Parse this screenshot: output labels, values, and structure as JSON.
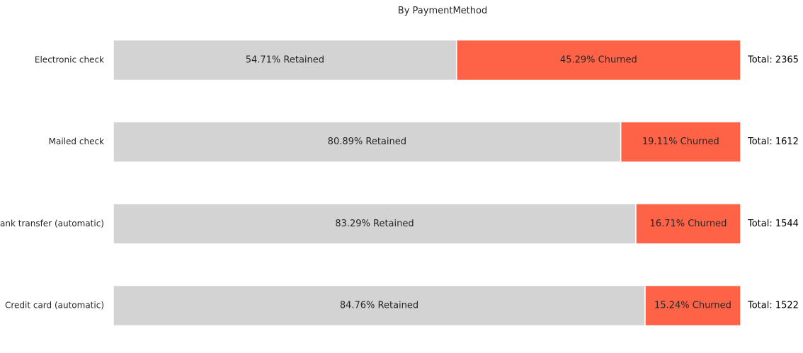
{
  "chart_data": {
    "type": "bar",
    "orientation": "horizontal",
    "stacked": true,
    "normalized": true,
    "title": "By PaymentMethod",
    "categories": [
      "Electronic check",
      "Mailed check",
      "Bank transfer (automatic)",
      "Credit card (automatic)"
    ],
    "series": [
      {
        "values": [
          54.71,
          80.89,
          83.29,
          84.76
        ],
        "color": "#d3d3d3",
        "labels": [
          "54.71% Retained",
          "80.89% Retained",
          "83.29% Retained",
          "84.76% Retained"
        ]
      },
      {
        "values": [
          45.29,
          19.11,
          16.71,
          15.24
        ],
        "color": "#ff6347",
        "labels": [
          "45.29% Churned",
          "19.11% Churned",
          "16.71% Churned",
          "15.24% Churned"
        ]
      }
    ],
    "totals": [
      "Total: 2365",
      "Total: 1612",
      "Total: 1544",
      "Total: 1522"
    ],
    "xlim": [
      0,
      100
    ],
    "grid": false,
    "axes_visible": false
  }
}
